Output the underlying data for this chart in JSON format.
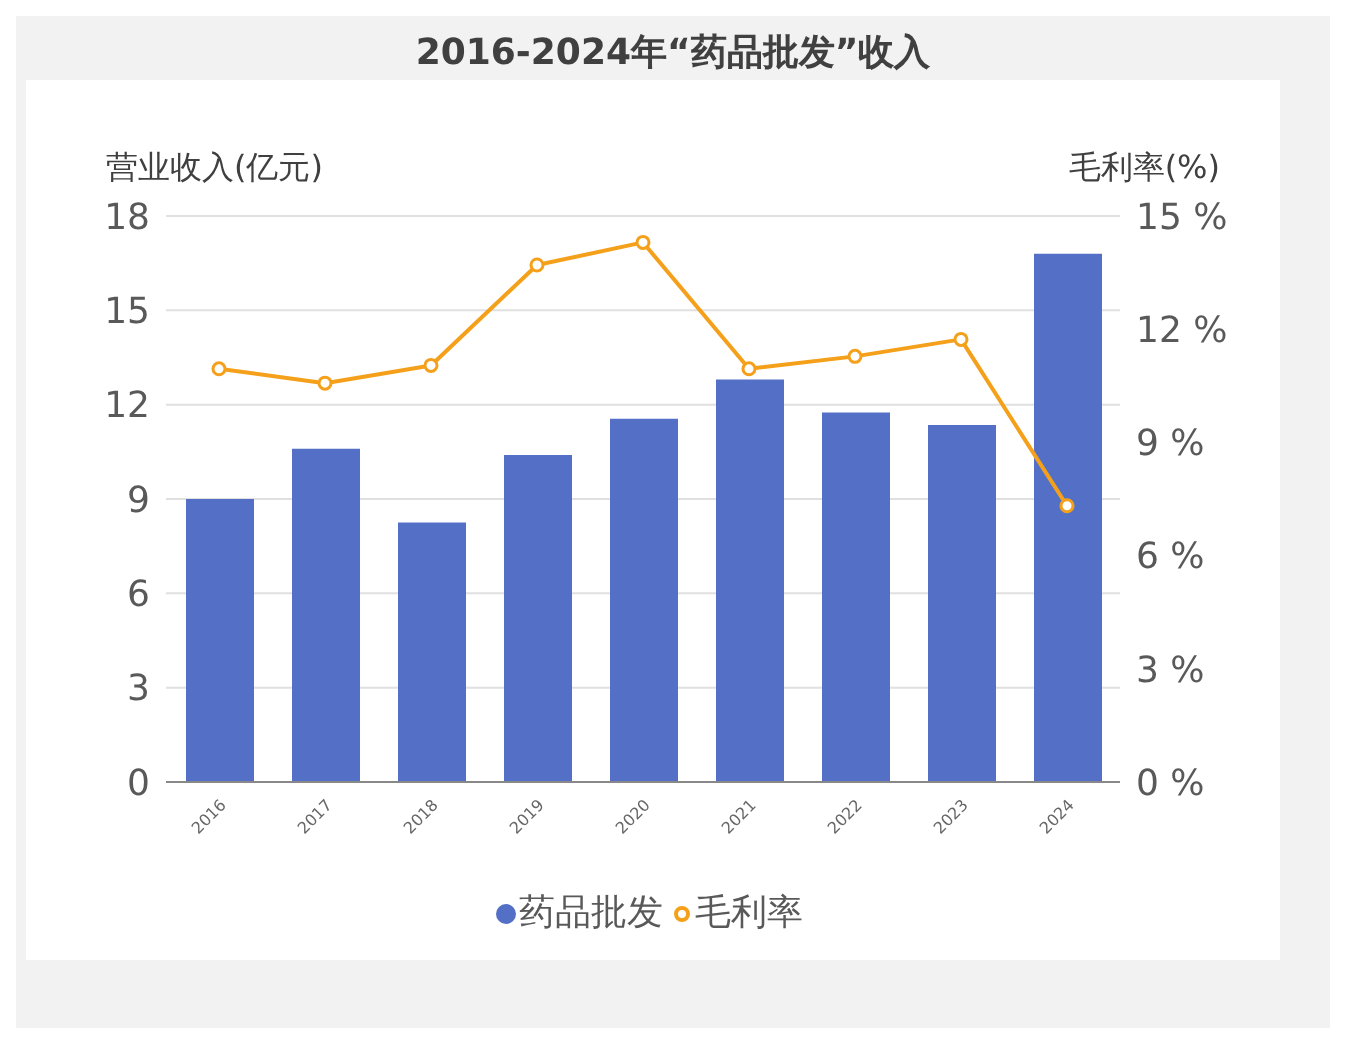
{
  "chart_data": {
    "type": "bar",
    "title": "2016-2024年“药品批发”收入",
    "ylabel": "营业收入(亿元)",
    "y2label": "毛利率(%)",
    "categories": [
      "2016",
      "2017",
      "2018",
      "2019",
      "2020",
      "2021",
      "2022",
      "2023",
      "2024"
    ],
    "series": [
      {
        "name": "药品批发",
        "color": "#5470c6",
        "values": [
          9.0,
          10.6,
          8.25,
          10.4,
          11.55,
          12.8,
          11.75,
          11.35,
          16.8
        ]
      },
      {
        "name": "毛利率",
        "type": "line",
        "axis": "y2",
        "color": "#f5a01a",
        "marker": "circle",
        "values": [
          10.95,
          10.57,
          11.04,
          13.7,
          14.3,
          10.95,
          11.28,
          11.73,
          7.32
        ]
      }
    ],
    "ylim": [
      0,
      18
    ],
    "yticks": [
      0,
      3,
      6,
      9,
      12,
      15,
      18
    ],
    "y2lim": [
      0,
      15
    ],
    "y2ticks": [
      {
        "value": 0,
        "label": "0 %"
      },
      {
        "value": 3,
        "label": "3 %"
      },
      {
        "value": 6,
        "label": "6 %"
      },
      {
        "value": 9,
        "label": "9 %"
      },
      {
        "value": 12,
        "label": "12 %"
      },
      {
        "value": 15,
        "label": "15 %"
      }
    ],
    "grid": "y",
    "legend": "bottom"
  }
}
